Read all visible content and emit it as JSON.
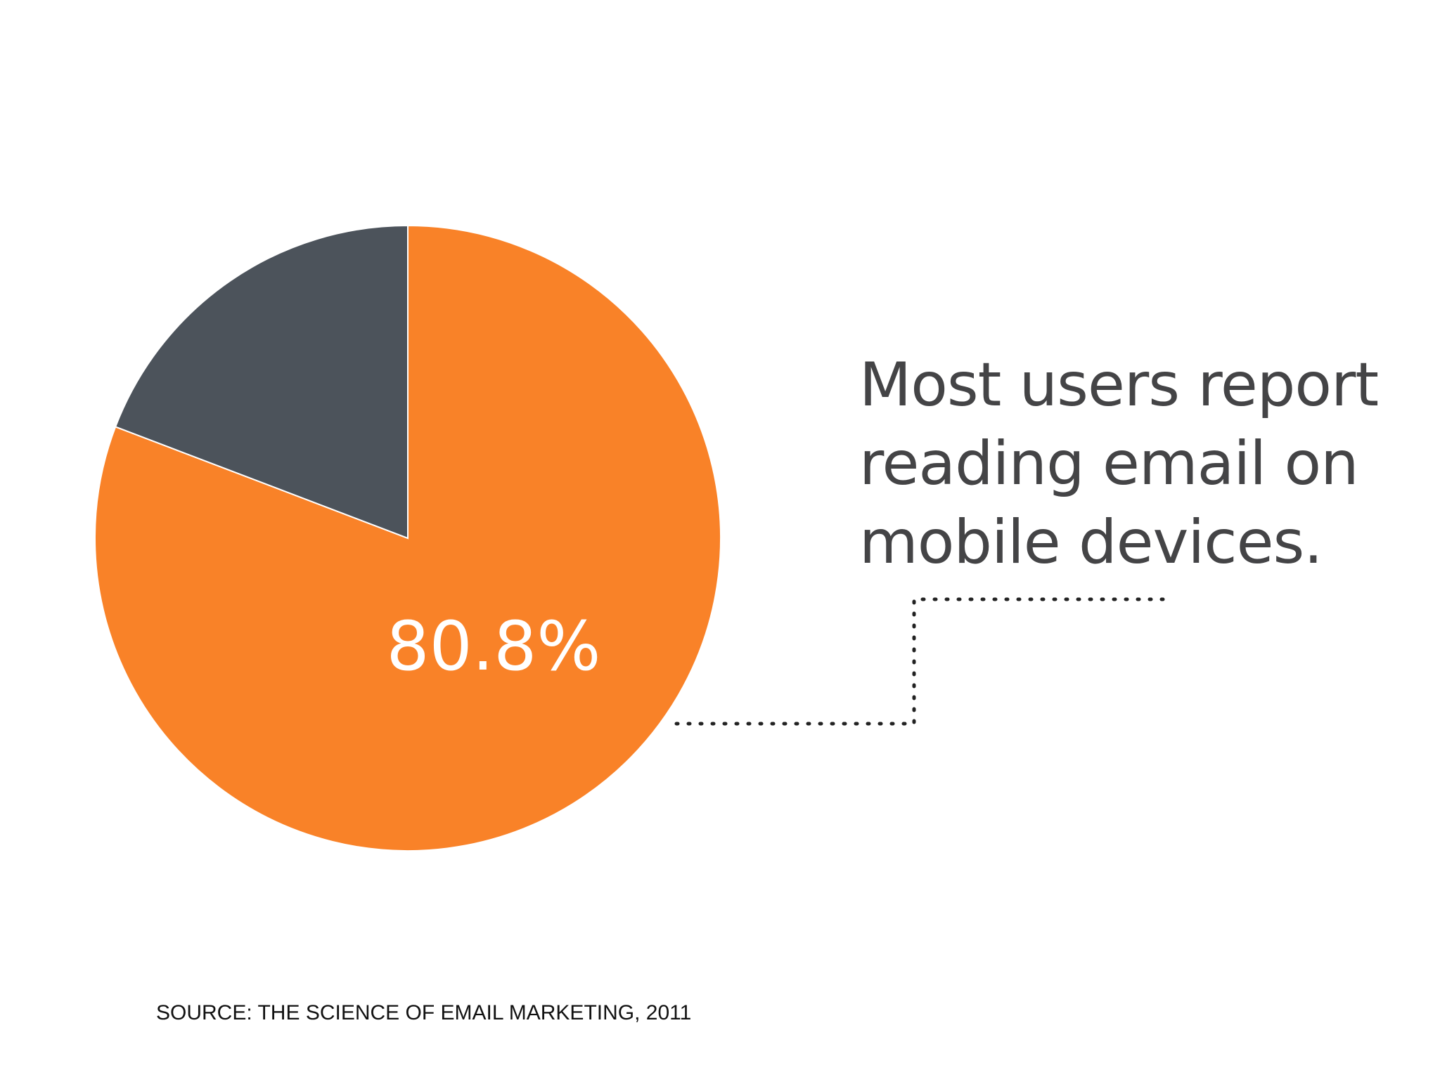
{
  "chart_data": {
    "type": "pie",
    "slices": [
      {
        "label": "",
        "value": 80.8,
        "color": "#f98228"
      },
      {
        "label": "",
        "value": 19.2,
        "color": "#4c535b"
      }
    ],
    "data_label": "80.8%"
  },
  "headline": {
    "lines": [
      "Most users report",
      "reading email on",
      "mobile devices."
    ]
  },
  "source": "SOURCE: THE SCIENCE OF EMAIL MARKETING, 2011",
  "colors": {
    "accent": "#f98228",
    "dark": "#4c535b",
    "text": "#444446",
    "connector": "#222222"
  }
}
